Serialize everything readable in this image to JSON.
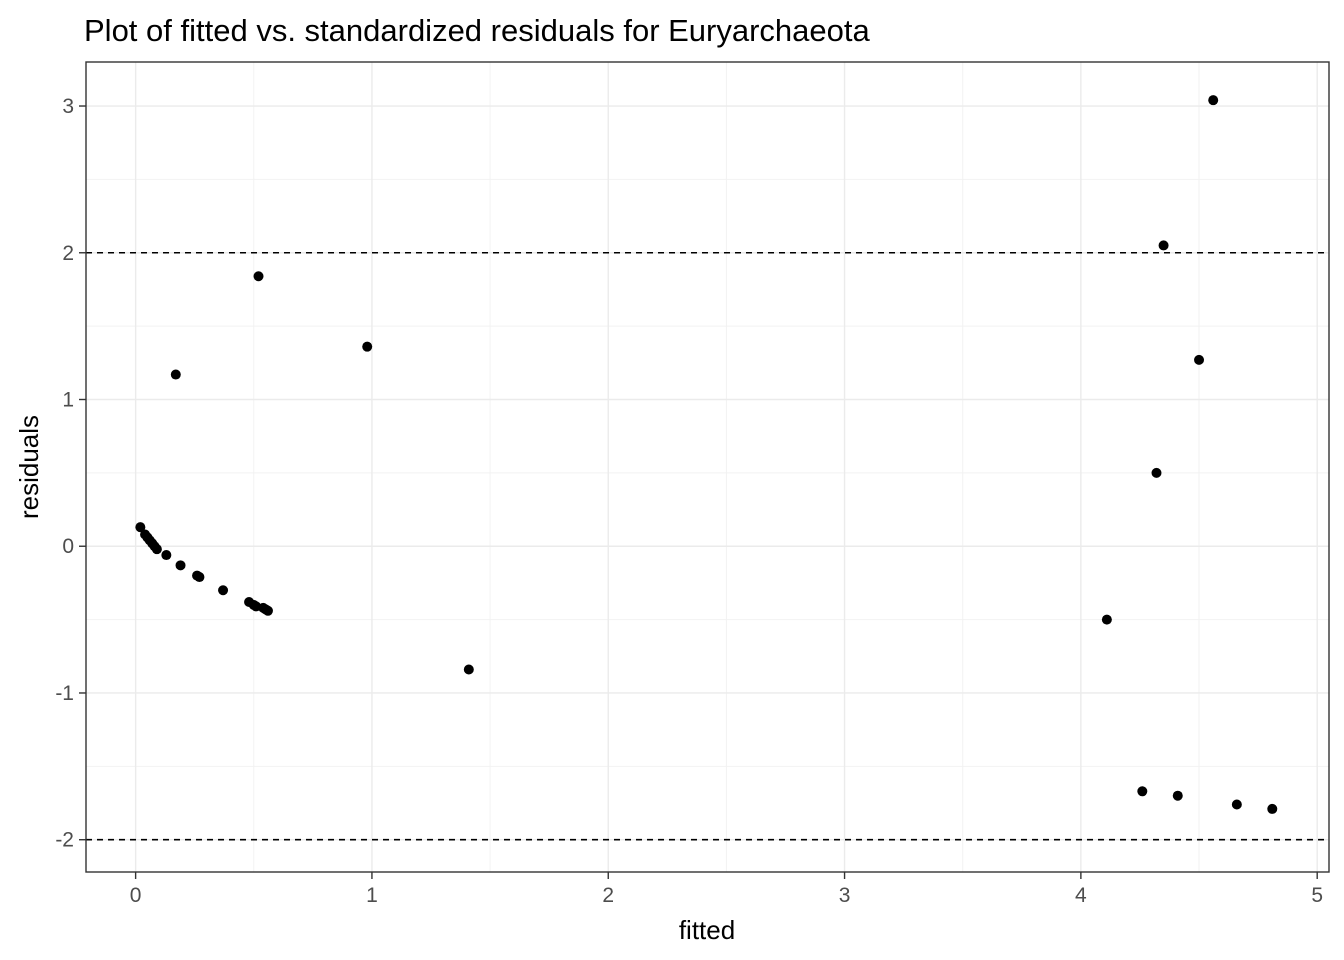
{
  "chart_data": {
    "type": "scatter",
    "title": "Plot of fitted vs. standardized residuals for Euryarchaeota",
    "xlabel": "fitted",
    "ylabel": "residuals",
    "xlim": [
      -0.21,
      5.05
    ],
    "ylim": [
      -2.22,
      3.3
    ],
    "x_ticks": [
      0,
      1,
      2,
      3,
      4,
      5
    ],
    "x_tick_labels": [
      "0",
      "1",
      "2",
      "3",
      "4",
      "5"
    ],
    "y_ticks": [
      -2,
      -1,
      0,
      1,
      2,
      3
    ],
    "y_tick_labels": [
      "-2",
      "-1",
      "0",
      "1",
      "2",
      "3"
    ],
    "reference_lines_y": [
      -2,
      2
    ],
    "grid": true,
    "theme": "black-and-white",
    "point_color": "#000000",
    "series": [
      {
        "x": [
          0.02,
          0.04,
          0.05,
          0.06,
          0.07,
          0.08,
          0.09,
          0.13,
          0.17,
          0.19,
          0.26,
          0.27,
          0.37,
          0.48,
          0.5,
          0.51,
          0.52,
          0.54,
          0.55,
          0.56,
          0.98,
          1.41,
          4.11,
          4.26,
          4.32,
          4.35,
          4.41,
          4.5,
          4.56,
          4.66,
          4.81
        ],
        "y": [
          0.13,
          0.08,
          0.06,
          0.04,
          0.02,
          0.0,
          -0.02,
          -0.06,
          1.17,
          -0.13,
          -0.2,
          -0.21,
          -0.3,
          -0.38,
          -0.4,
          -0.41,
          1.84,
          -0.42,
          -0.43,
          -0.44,
          1.36,
          -0.84,
          -0.5,
          -1.67,
          0.5,
          2.05,
          -1.7,
          1.27,
          3.04,
          -1.76,
          -1.79
        ]
      }
    ]
  }
}
